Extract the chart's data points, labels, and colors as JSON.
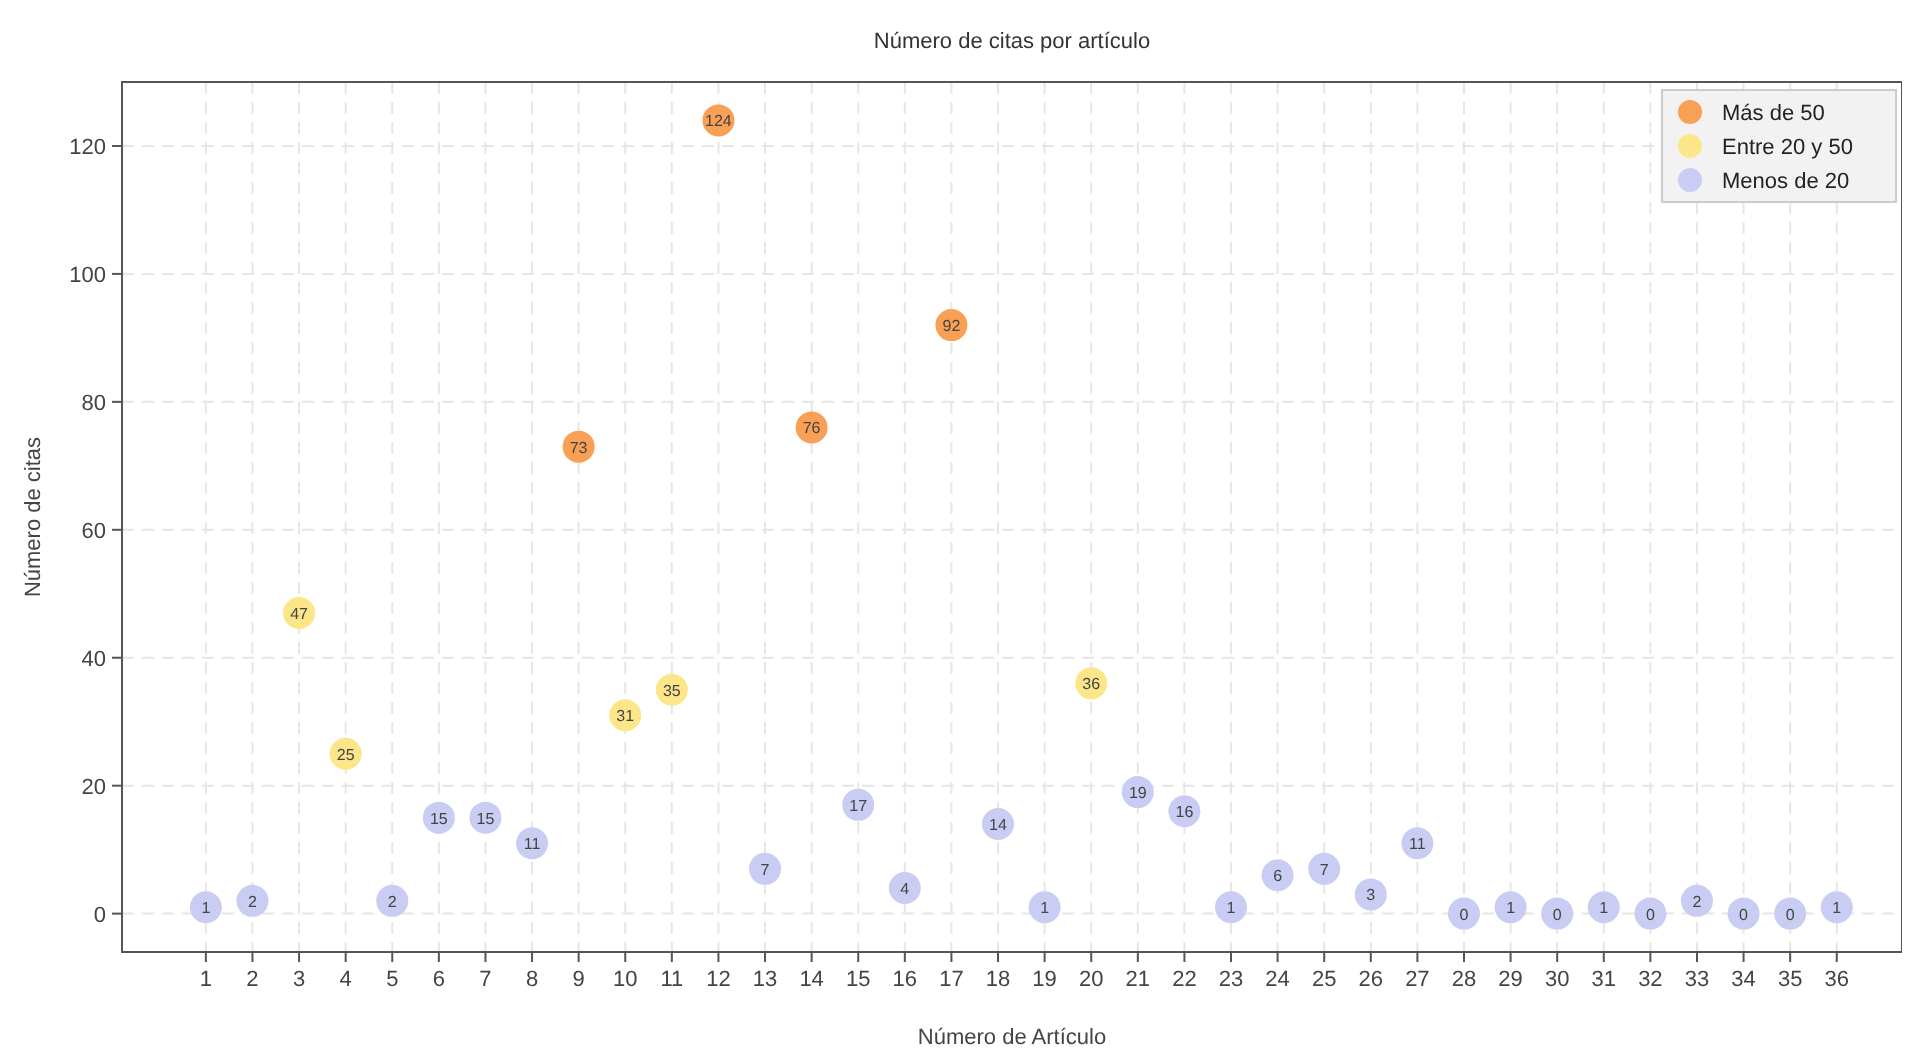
{
  "chart_data": {
    "type": "scatter",
    "title": "Número de citas por artículo",
    "xlabel": "Número de Artículo",
    "ylabel": "Número de citas",
    "xlim": [
      -0.8,
      37.4
    ],
    "xticks": [
      1,
      2,
      3,
      4,
      5,
      6,
      7,
      8,
      9,
      10,
      11,
      12,
      13,
      14,
      15,
      16,
      17,
      18,
      19,
      20,
      21,
      22,
      23,
      24,
      25,
      26,
      27,
      28,
      29,
      30,
      31,
      32,
      33,
      34,
      35,
      36
    ],
    "ylim": [
      -6,
      130
    ],
    "yticks": [
      0,
      20,
      40,
      60,
      80,
      100,
      120
    ],
    "grid": true,
    "legend": "top right",
    "marker": "circle",
    "data_labels": true,
    "series": [
      {
        "name": "Más de 50",
        "color": "#f8a055",
        "x": [
          9,
          12,
          14,
          17
        ],
        "values": [
          73,
          124,
          76,
          92
        ]
      },
      {
        "name": "Entre 20 y 50",
        "color": "#fde68a",
        "x": [
          3,
          4,
          10,
          11,
          20
        ],
        "values": [
          47,
          25,
          31,
          35,
          36
        ]
      },
      {
        "name": "Menos de 20",
        "color": "#c9cdf4",
        "x": [
          1,
          2,
          5,
          6,
          7,
          8,
          13,
          15,
          16,
          18,
          19,
          21,
          22,
          23,
          24,
          25,
          26,
          27,
          28,
          29,
          30,
          31,
          32,
          33,
          34,
          35,
          36
        ],
        "values": [
          1,
          2,
          2,
          15,
          15,
          11,
          7,
          17,
          4,
          14,
          1,
          19,
          16,
          1,
          6,
          7,
          3,
          11,
          0,
          1,
          0,
          1,
          0,
          2,
          0,
          0,
          1
        ]
      }
    ]
  }
}
